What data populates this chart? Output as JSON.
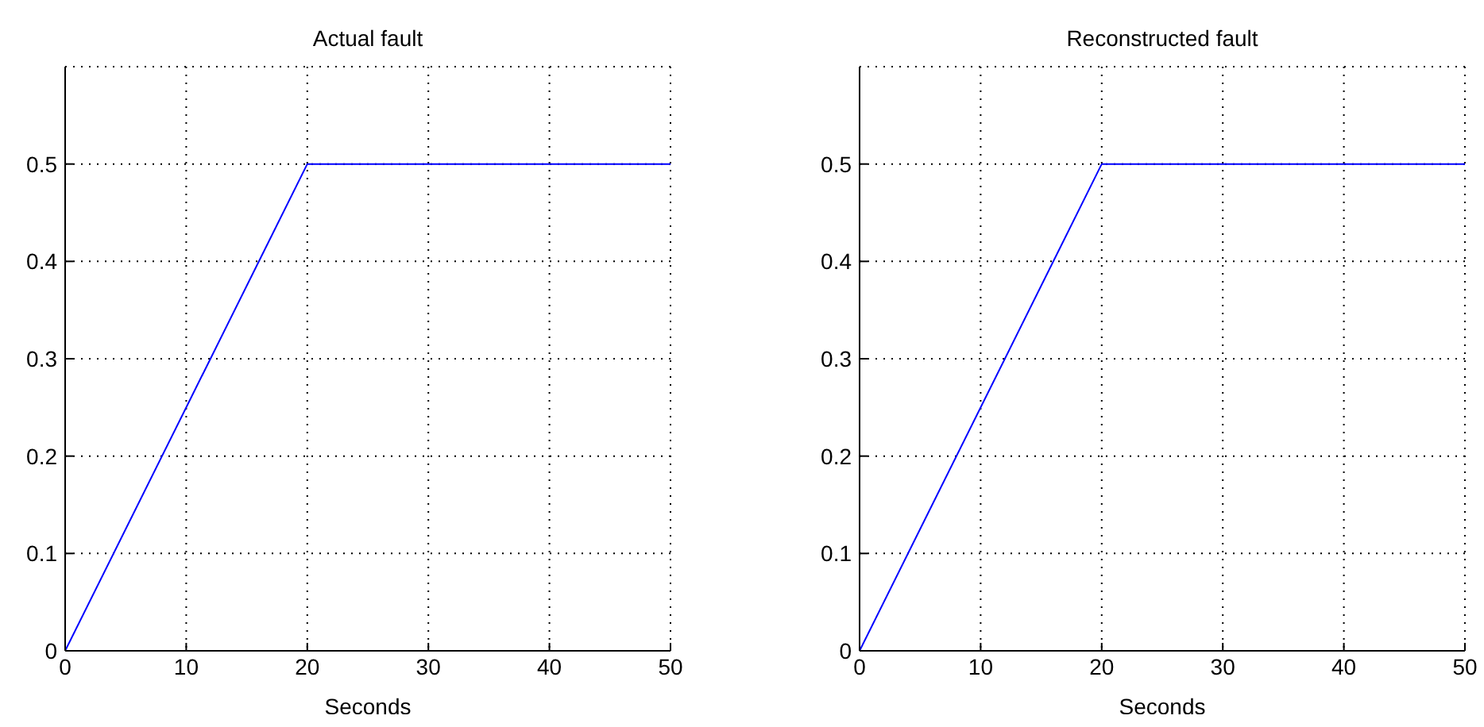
{
  "chart_data": [
    {
      "type": "line",
      "title": "Actual fault",
      "xlabel": "Seconds",
      "x": [
        0,
        20,
        50
      ],
      "series": [
        {
          "color": "#0000ff",
          "values": [
            0,
            0.5,
            0.5
          ]
        }
      ],
      "xlim": [
        0,
        50
      ],
      "xticks": [
        0,
        10,
        20,
        30,
        40,
        50
      ],
      "ylim": [
        0,
        0.6
      ],
      "yticks": [
        0,
        0.1,
        0.2,
        0.3,
        0.4,
        0.5
      ],
      "grid": true,
      "line_style": "solid",
      "marker": "none",
      "legend": false
    },
    {
      "type": "line",
      "title": "Reconstructed fault",
      "xlabel": "Seconds",
      "x": [
        0,
        20,
        50
      ],
      "series": [
        {
          "color": "#0000ff",
          "values": [
            0,
            0.5,
            0.5
          ]
        }
      ],
      "xlim": [
        0,
        50
      ],
      "xticks": [
        0,
        10,
        20,
        30,
        40,
        50
      ],
      "ylim": [
        0,
        0.6
      ],
      "yticks": [
        0,
        0.1,
        0.2,
        0.3,
        0.4,
        0.5
      ],
      "grid": true,
      "line_style": "solid",
      "marker": "none",
      "legend": false
    }
  ]
}
